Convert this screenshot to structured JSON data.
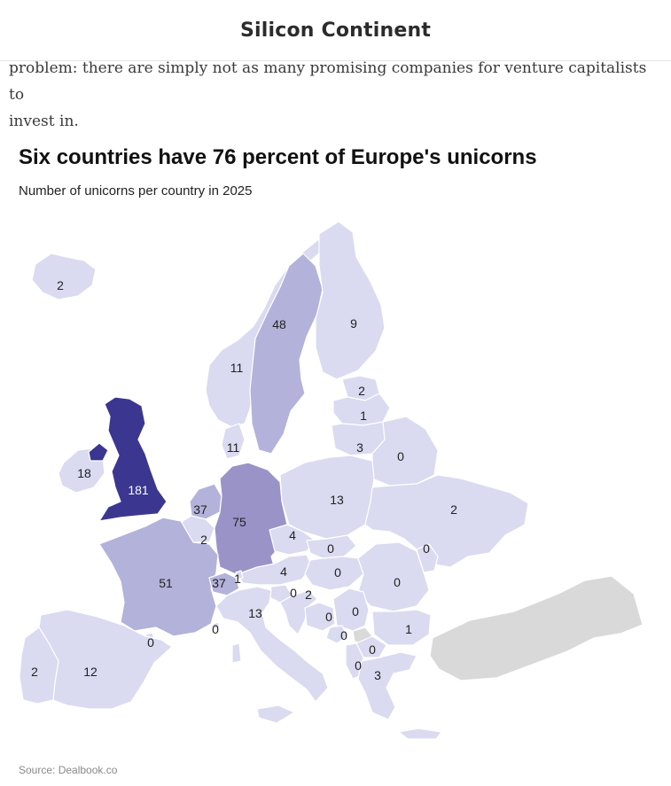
{
  "header": {
    "site_title": "Silicon Continent"
  },
  "article": {
    "text_line1": "problem: there are simply not as many promising companies for venture capitalists to",
    "text_line2": "invest in."
  },
  "chart": {
    "title": "Six countries have 76 percent of Europe's unicorns",
    "subtitle": "Number of unicorns per country in 2025",
    "source": "Source: Dealbook.co"
  },
  "colors": {
    "scale_low": "#dadaf0",
    "scale_mid": "#b2b2da",
    "scale_high": "#9a93c8",
    "scale_max": "#3b3690",
    "no_data": "#d9d9d9",
    "border": "#ffffff"
  },
  "chart_data": {
    "type": "choropleth",
    "metric": "Number of unicorns per country in 2025",
    "countries": [
      {
        "id": "iceland",
        "value": 2
      },
      {
        "id": "norway",
        "value": 11
      },
      {
        "id": "sweden",
        "value": 48
      },
      {
        "id": "finland",
        "value": 9
      },
      {
        "id": "estonia",
        "value": 2
      },
      {
        "id": "latvia",
        "value": 1
      },
      {
        "id": "lithuania",
        "value": 3
      },
      {
        "id": "belarus",
        "value": 0
      },
      {
        "id": "denmark",
        "value": 11
      },
      {
        "id": "ireland",
        "value": 18
      },
      {
        "id": "uk",
        "value": 181
      },
      {
        "id": "netherlands",
        "value": 37
      },
      {
        "id": "belgium",
        "value": 2
      },
      {
        "id": "germany",
        "value": 75
      },
      {
        "id": "poland",
        "value": 13
      },
      {
        "id": "ukraine",
        "value": 2
      },
      {
        "id": "czechia",
        "value": 4
      },
      {
        "id": "slovakia",
        "value": 0
      },
      {
        "id": "moldova",
        "value": 0
      },
      {
        "id": "austria",
        "value": 4
      },
      {
        "id": "hungary",
        "value": 0
      },
      {
        "id": "romania",
        "value": 0
      },
      {
        "id": "france",
        "value": 51
      },
      {
        "id": "switzerland",
        "value": 37
      },
      {
        "id": "liechtenstein",
        "value": 1
      },
      {
        "id": "slovenia",
        "value": 0
      },
      {
        "id": "croatia",
        "value": 2
      },
      {
        "id": "bosnia",
        "value": 0
      },
      {
        "id": "serbia",
        "value": 0
      },
      {
        "id": "montenegro",
        "value": 0
      },
      {
        "id": "bulgaria",
        "value": 1
      },
      {
        "id": "north_macedonia",
        "value": 0
      },
      {
        "id": "albania",
        "value": 0
      },
      {
        "id": "greece",
        "value": 3
      },
      {
        "id": "italy",
        "value": 13
      },
      {
        "id": "monaco",
        "value": 0
      },
      {
        "id": "andorra",
        "value": 0
      },
      {
        "id": "spain",
        "value": 12
      },
      {
        "id": "portugal",
        "value": 2
      },
      {
        "id": "turkey",
        "value": null
      },
      {
        "id": "kosovo",
        "value": null
      }
    ]
  }
}
